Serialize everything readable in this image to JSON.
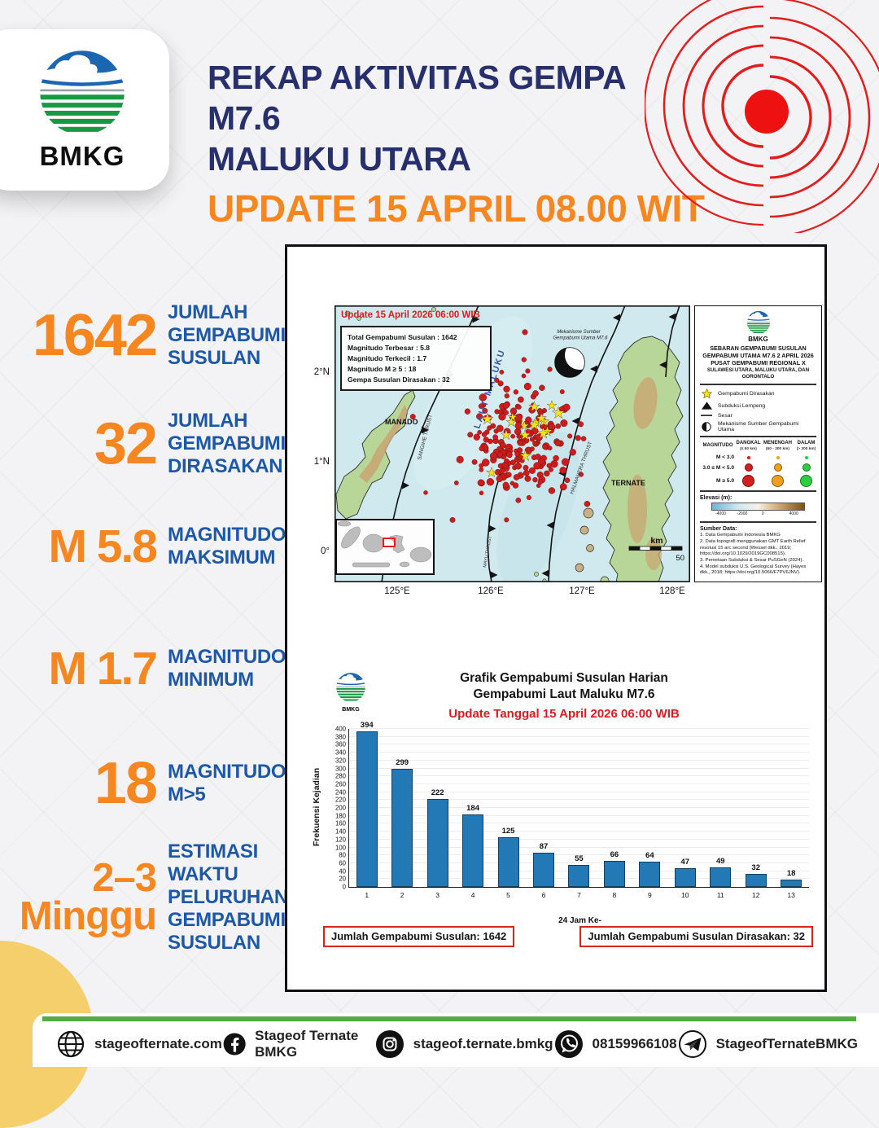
{
  "header": {
    "logo_text": "BMKG",
    "title_line1": "REKAP AKTIVITAS GEMPA M7.6",
    "title_line2": "MALUKU UTARA",
    "subtitle": "UPDATE 15 APRIL 08.00 WIT"
  },
  "stats": [
    {
      "value": "1642",
      "label": "JUMLAH GEMPABUMI SUSULAN"
    },
    {
      "value": "32",
      "label": "JUMLAH GEMPABUMI DIRASAKAN"
    },
    {
      "value": "M 5.8",
      "label": "MAGNITUDO MAKSIMUM"
    },
    {
      "value": "M 1.7",
      "label": "MAGNITUDO MINIMUM"
    },
    {
      "value": "18",
      "label": "MAGNITUDO M>5"
    },
    {
      "value": "2–3 Minggu",
      "label": "ESTIMASI WAKTU PELURUHAN GEMPABUMI SUSULAN"
    }
  ],
  "map": {
    "update_text": "Update 15 April 2026 06:00 WIB",
    "info_lines": [
      "Total Gempabumi Susulan : 1642",
      "Magnitudo Terbesar : 5.8",
      "Magnitudo Terkecil : 1.7",
      "Magnitudo M ≥ 5 : 18",
      "Gempa Susulan Dirasakan : 32"
    ],
    "labels": {
      "city_manado": "MANADO",
      "city_ternate": "TERNATE",
      "sea": "LAUT MALUKU",
      "thrust_sangihe": "SANGIHE THRUST",
      "thrust_mayu": "MAYU THRUST",
      "thrust_halmahera": "HALMAHERA THRUST",
      "mechanism_l1": "Mekanisme Sumber",
      "mechanism_l2": "Gempabumi Utama M7.6"
    },
    "x_ticks": [
      "125°E",
      "126°E",
      "127°E",
      "128°E"
    ],
    "y_ticks": [
      "2°N",
      "1°N",
      "0°"
    ],
    "scale": {
      "unit": "km",
      "value": "50"
    }
  },
  "legend": {
    "org": "BMKG",
    "title": "SEBARAN GEMPABUMI SUSULAN GEMPABUMI UTAMA M7.6 2 APRIL 2026 PUSAT GEMPABUMI REGIONAL X",
    "subtitle": "SULAWESI UTARA, MALUKU UTARA, DAN GORONTALO",
    "items": [
      {
        "label": "Gempabumi Dirasakan"
      },
      {
        "label": "Subduksi Lempeng"
      },
      {
        "label": "Sesar"
      },
      {
        "label": "Mekanisme Sumber Gempabumi Utama"
      }
    ],
    "magnitude_table": {
      "col_headers": [
        "MAGNITUDO",
        "DANGKAL",
        "MENENGAH",
        "DALAM"
      ],
      "col_subheaders": [
        "(≤ 60 km)",
        "(60 - 300 km)",
        "(> 300 km)"
      ],
      "rows": [
        "M < 3.0",
        "3.0 ≤ M < 5.0",
        "M ≥ 5.0"
      ]
    },
    "elevation_label": "Elevasi (m):",
    "elevation_ticks": [
      "-4000",
      "-2000",
      "0",
      "4000"
    ],
    "source_title": "Sumber Data:",
    "sources": [
      "1. Data Gempabumi Indonesia BMKG",
      "2. Data topografi menggunakan GMT Earth Relief resolusi 15 arc second (Wessel dkk., 2019; https://doi.org/10.1029/2019GC008515).",
      "3. Pemetaan Subduksi & Sesar PuSGeN (2024).",
      "4. Model subduksi U.S. Geological Survey (Hayes dkk., 2018; https://doi.org/10.5066/F7PV6JNV)."
    ]
  },
  "chart_data": {
    "type": "bar",
    "title": "Grafik Gempabumi Susulan Harian",
    "title_line2": "Gempabumi Laut Maluku M7.6",
    "subtitle": "Update Tanggal 15 April 2026 06:00 WIB",
    "categories": [
      "1",
      "2",
      "3",
      "4",
      "5",
      "6",
      "7",
      "8",
      "9",
      "10",
      "11",
      "12",
      "13"
    ],
    "values": [
      394,
      299,
      222,
      184,
      125,
      87,
      55,
      66,
      64,
      47,
      49,
      32,
      18
    ],
    "xlabel": "24 Jam Ke-",
    "ylabel": "Frekuensi Kejadian",
    "ylim": [
      0,
      400
    ],
    "ytick_step": 20,
    "grid": true,
    "bar_color": "#2379B5",
    "annotations": [
      "Jumlah Gempabumi Susulan: 1642",
      "Jumlah Gempabumi Susulan Dirasakan: 32"
    ]
  },
  "totals": {
    "left": "Jumlah Gempabumi Susulan: 1642",
    "right": "Jumlah Gempabumi Susulan Dirasakan: 32"
  },
  "footer": {
    "website": "stageofternate.com",
    "facebook": "Stageof Ternate BMKG",
    "instagram": "stageof.ternate.bmkg",
    "whatsapp": "08159966108",
    "telegram": "StageofTernateBMKG"
  },
  "colors": {
    "accent_orange": "#F6861F",
    "navy": "#272F6D",
    "label_blue": "#1D58A8",
    "alert_red": "#E0191F",
    "bar_blue": "#2379B5",
    "footer_green": "#5BA54B",
    "corner_yellow": "#F6CF6D"
  }
}
